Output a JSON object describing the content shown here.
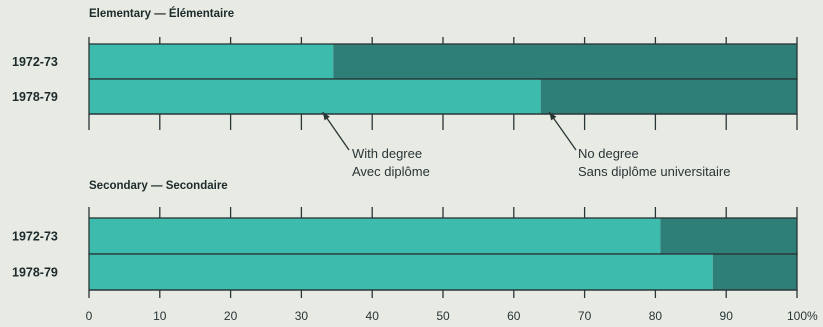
{
  "chart_data": {
    "type": "bar",
    "orientation": "horizontal",
    "stacked": true,
    "xlim": [
      0,
      100
    ],
    "x_ticks": [
      "0",
      "10",
      "20",
      "30",
      "40",
      "50",
      "60",
      "70",
      "80",
      "90",
      "100"
    ],
    "x_unit": "%",
    "colors": {
      "with_degree": "#3dbcad",
      "no_degree": "#2e7f78"
    },
    "annotations": [
      {
        "id": "with-degree",
        "lines": [
          "With degree",
          "Avec diplôme"
        ],
        "points_to_x": 33
      },
      {
        "id": "no-degree",
        "lines": [
          "No degree",
          "Sans diplôme universitaire"
        ],
        "points_to_x": 65
      }
    ],
    "panels": [
      {
        "title": "Elementary — Élémentaire",
        "categories": [
          "1972-73",
          "1978-79"
        ],
        "series": [
          {
            "key": "with_degree",
            "values": [
              34.5,
              63.8
            ]
          },
          {
            "key": "no_degree",
            "values": [
              65.5,
              36.2
            ]
          }
        ]
      },
      {
        "title": "Secondary — Secondaire",
        "categories": [
          "1972-73",
          "1978-79"
        ],
        "series": [
          {
            "key": "with_degree",
            "values": [
              80.7,
              88.1
            ]
          },
          {
            "key": "no_degree",
            "values": [
              19.3,
              11.9
            ]
          }
        ]
      }
    ]
  }
}
